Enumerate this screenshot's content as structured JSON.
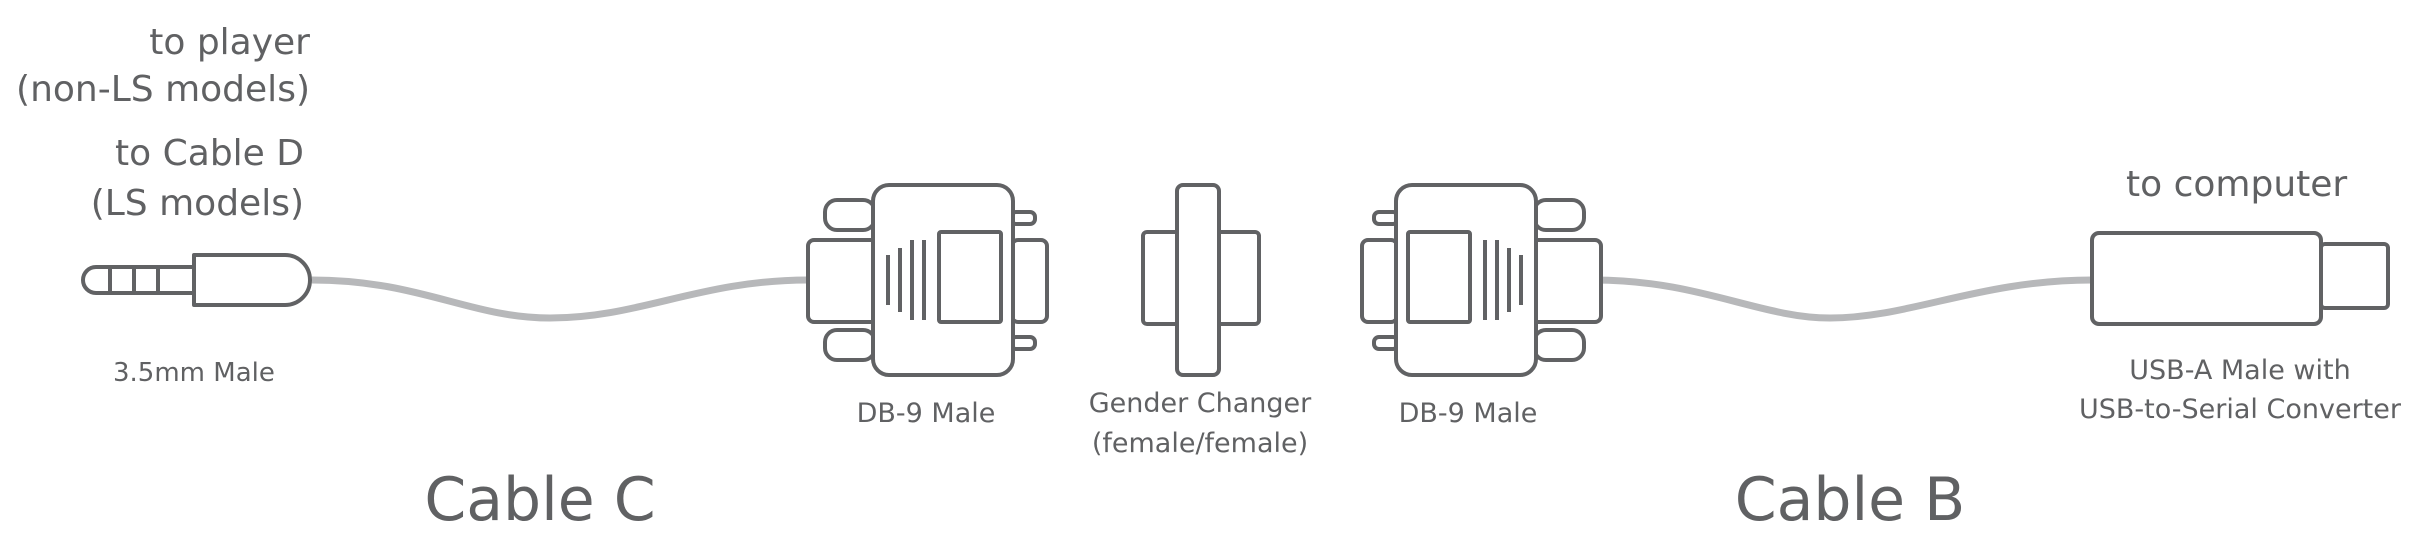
{
  "labels": {
    "to_player_1": "to player",
    "to_player_2": "(non-LS models)",
    "to_cable_d_1": "to Cable D",
    "to_cable_d_2": "(LS models)",
    "jack_name": "3.5mm Male",
    "db9_left_name": "DB-9 Male",
    "gender_changer_1": "Gender Changer",
    "gender_changer_2": "(female/female)",
    "db9_right_name": "DB-9 Male",
    "to_computer": "to computer",
    "usb_name_1": "USB-A Male with",
    "usb_name_2": "USB-to-Serial Converter"
  },
  "cables": {
    "c": "Cable C",
    "b": "Cable B"
  },
  "colors": {
    "stroke": "#616264",
    "cable": "#b7b8ba",
    "text": "#606163"
  }
}
